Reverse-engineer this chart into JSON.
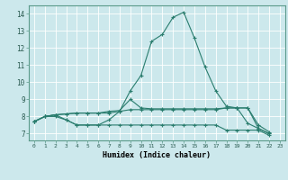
{
  "xlabel": "Humidex (Indice chaleur)",
  "background_color": "#cce8ec",
  "line_color": "#2a7d6e",
  "grid_color": "#ffffff",
  "xlim": [
    -0.5,
    23.5
  ],
  "ylim": [
    6.6,
    14.5
  ],
  "yticks": [
    7,
    8,
    9,
    10,
    11,
    12,
    13,
    14
  ],
  "xticks": [
    0,
    1,
    2,
    3,
    4,
    5,
    6,
    7,
    8,
    9,
    10,
    11,
    12,
    13,
    14,
    15,
    16,
    17,
    18,
    19,
    20,
    21,
    22,
    23
  ],
  "series1": [
    7.7,
    8.0,
    8.1,
    7.8,
    7.5,
    7.5,
    7.5,
    7.8,
    8.3,
    9.5,
    10.4,
    12.4,
    12.8,
    13.8,
    14.1,
    12.6,
    10.9,
    9.5,
    8.6,
    8.5,
    7.6,
    7.3,
    7.0
  ],
  "series2": [
    7.7,
    8.0,
    8.1,
    8.15,
    8.2,
    8.2,
    8.2,
    8.3,
    8.35,
    9.0,
    8.5,
    8.45,
    8.45,
    8.45,
    8.45,
    8.45,
    8.45,
    8.45,
    8.5,
    8.5,
    8.5,
    7.5,
    7.1
  ],
  "series3": [
    7.7,
    8.0,
    8.1,
    8.15,
    8.2,
    8.2,
    8.2,
    8.2,
    8.3,
    8.4,
    8.4,
    8.4,
    8.4,
    8.4,
    8.4,
    8.4,
    8.4,
    8.4,
    8.5,
    8.5,
    8.5,
    7.3,
    7.0
  ],
  "series4": [
    7.7,
    8.0,
    8.0,
    7.8,
    7.5,
    7.5,
    7.5,
    7.5,
    7.5,
    7.5,
    7.5,
    7.5,
    7.5,
    7.5,
    7.5,
    7.5,
    7.5,
    7.5,
    7.2,
    7.2,
    7.2,
    7.2,
    6.9
  ],
  "markersize": 2.0
}
